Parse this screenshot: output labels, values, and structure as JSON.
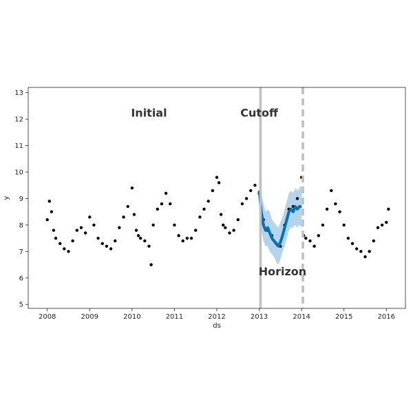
{
  "chart_data": {
    "type": "scatter",
    "xlabel": "ds",
    "ylabel": "y",
    "xlim": [
      2007.55,
      2016.45
    ],
    "ylim": [
      4.85,
      13.2
    ],
    "x_ticks": [
      2008,
      2009,
      2010,
      2011,
      2012,
      2013,
      2014,
      2015,
      2016
    ],
    "x_tick_labels": [
      "2008",
      "2009",
      "2010",
      "2011",
      "2012",
      "2013",
      "2014",
      "2015",
      "2016"
    ],
    "y_ticks": [
      5,
      6,
      7,
      8,
      9,
      10,
      11,
      12,
      13
    ],
    "y_tick_labels": [
      "5",
      "6",
      "7",
      "8",
      "9",
      "10",
      "11",
      "12",
      "13"
    ],
    "grid": false,
    "colors": {
      "points": "#000000",
      "forecast": "#0072B2",
      "interval": "#A7CBEA",
      "markers": "#BFBFBF"
    },
    "series": [
      {
        "kind": "observed",
        "x": [
          2008.0,
          2008.05,
          2008.1,
          2008.15,
          2008.2,
          2008.3,
          2008.4,
          2008.5,
          2008.6,
          2008.7,
          2008.8,
          2008.9,
          2009.0,
          2009.1,
          2009.2,
          2009.3,
          2009.4,
          2009.5,
          2009.6,
          2009.7,
          2009.8,
          2009.9,
          2010.0,
          2010.05,
          2010.1,
          2010.15,
          2010.2,
          2010.3,
          2010.4,
          2010.45,
          2010.5,
          2010.6,
          2010.7,
          2010.8,
          2010.9,
          2011.0,
          2011.1,
          2011.2,
          2011.3,
          2011.4,
          2011.5,
          2011.6,
          2011.7,
          2011.8,
          2011.9,
          2012.0,
          2012.05,
          2012.1,
          2012.15,
          2012.2,
          2012.3,
          2012.4,
          2012.5,
          2012.6,
          2012.7,
          2012.8,
          2012.9,
          2013.0,
          2013.1,
          2013.2,
          2013.3,
          2013.4,
          2013.5,
          2013.6,
          2013.7,
          2013.8,
          2013.9,
          2014.0,
          2014.05,
          2014.1,
          2014.2,
          2014.3,
          2014.4,
          2014.5,
          2014.6,
          2014.7,
          2014.8,
          2014.9,
          2015.0,
          2015.1,
          2015.2,
          2015.3,
          2015.4,
          2015.5,
          2015.6,
          2015.7,
          2015.8,
          2015.9,
          2016.0,
          2016.05
        ],
        "y": [
          8.2,
          8.9,
          8.5,
          7.8,
          7.5,
          7.3,
          7.1,
          7.0,
          7.4,
          7.8,
          7.9,
          7.7,
          8.3,
          8.0,
          7.5,
          7.3,
          7.2,
          7.1,
          7.4,
          7.9,
          8.3,
          8.7,
          9.4,
          8.4,
          7.8,
          7.6,
          7.5,
          7.4,
          7.2,
          6.5,
          8.0,
          8.6,
          8.8,
          9.2,
          8.8,
          8.0,
          7.6,
          7.4,
          7.5,
          7.5,
          7.8,
          8.3,
          8.6,
          8.9,
          9.3,
          9.8,
          9.6,
          8.4,
          8.0,
          7.9,
          7.7,
          7.8,
          8.2,
          8.8,
          9.0,
          9.3,
          9.5,
          9.2,
          8.2,
          7.8,
          7.6,
          7.3,
          7.2,
          8.0,
          8.6,
          8.7,
          9.0,
          9.8,
          7.6,
          7.5,
          7.4,
          7.2,
          7.6,
          8.0,
          8.6,
          9.3,
          8.8,
          8.5,
          8.0,
          7.5,
          7.3,
          7.1,
          7.0,
          6.8,
          7.0,
          7.4,
          7.9,
          8.0,
          8.1,
          8.6
        ]
      },
      {
        "kind": "forecast",
        "x": [
          2013.0,
          2013.05,
          2013.1,
          2013.15,
          2013.2,
          2013.25,
          2013.3,
          2013.35,
          2013.4,
          2013.45,
          2013.5,
          2013.55,
          2013.6,
          2013.65,
          2013.7,
          2013.75,
          2013.8,
          2013.85,
          2013.9,
          2013.95,
          2014.0
        ],
        "y": [
          9.3,
          8.5,
          8.0,
          7.8,
          7.9,
          7.7,
          7.5,
          7.4,
          7.3,
          7.2,
          7.35,
          7.6,
          7.9,
          8.2,
          8.5,
          8.6,
          8.5,
          8.7,
          8.6,
          8.7,
          8.7
        ],
        "lower": [
          8.6,
          7.8,
          7.4,
          7.2,
          7.2,
          7.0,
          6.9,
          6.8,
          6.6,
          6.5,
          6.7,
          7.0,
          7.2,
          7.5,
          7.8,
          7.9,
          7.9,
          8.0,
          7.9,
          8.0,
          7.9
        ],
        "upper": [
          10.1,
          9.2,
          8.8,
          8.5,
          8.6,
          8.5,
          8.2,
          8.1,
          8.0,
          7.9,
          8.1,
          8.3,
          8.6,
          8.9,
          9.2,
          9.3,
          9.2,
          9.4,
          9.3,
          9.4,
          9.5
        ]
      }
    ],
    "vlines": [
      {
        "x": 2013.03,
        "style": "solid"
      },
      {
        "x": 2014.03,
        "style": "dashed"
      }
    ],
    "annotations": [
      {
        "text": "Initial",
        "x": 2010.4,
        "y": 12.1
      },
      {
        "text": "Cutoff",
        "x": 2013.0,
        "y": 12.1
      },
      {
        "text": "Horizon",
        "x": 2013.55,
        "y": 6.1
      }
    ]
  }
}
